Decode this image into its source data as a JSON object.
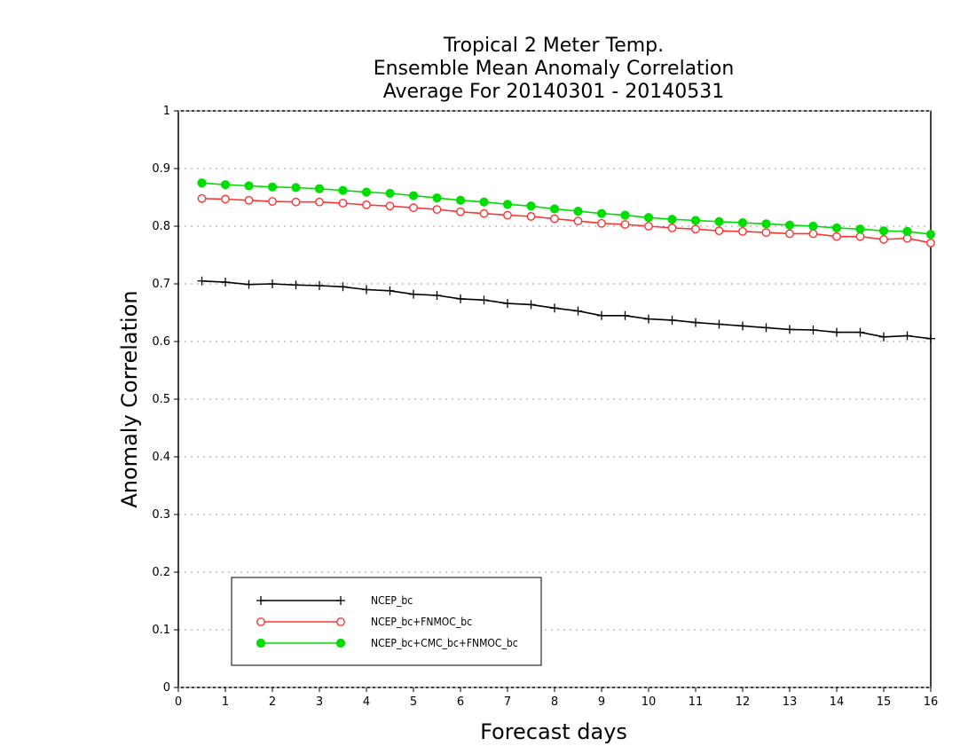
{
  "chart_data": {
    "type": "line",
    "title": [
      "Tropical 2 Meter Temp.",
      "Ensemble Mean Anomaly Correlation",
      "Average For 20140301 - 20140531"
    ],
    "xlabel": "Forecast days",
    "ylabel": "Anomaly Correlation",
    "xlim": [
      0,
      16
    ],
    "ylim": [
      0,
      1
    ],
    "xticks": [
      0,
      1,
      2,
      3,
      4,
      5,
      6,
      7,
      8,
      9,
      10,
      11,
      12,
      13,
      14,
      15,
      16
    ],
    "xtick_labels": [
      "0",
      "1",
      "2",
      "3",
      "4",
      "5",
      "6",
      "7",
      "8",
      "9",
      "10",
      "11",
      "12",
      "13",
      "14",
      "15",
      "16"
    ],
    "yticks": [
      0,
      0.1,
      0.2,
      0.3,
      0.4,
      0.5,
      0.6,
      0.7,
      0.8,
      0.9,
      1
    ],
    "ytick_labels": [
      "0",
      "0.1",
      "0.2",
      "0.3",
      "0.4",
      "0.5",
      "0.6",
      "0.7",
      "0.8",
      "0.9",
      "1"
    ],
    "grid": "horizontal dotted",
    "legend_position": "bottom-left",
    "x": [
      0.5,
      1,
      1.5,
      2,
      2.5,
      3,
      3.5,
      4,
      4.5,
      5,
      5.5,
      6,
      6.5,
      7,
      7.5,
      8,
      8.5,
      9,
      9.5,
      10,
      10.5,
      11,
      11.5,
      12,
      12.5,
      13,
      13.5,
      14,
      14.5,
      15,
      15.5,
      16
    ],
    "series": [
      {
        "name": "NCEP_bc",
        "color": "#000000",
        "marker": "plus",
        "values": [
          0.705,
          0.703,
          0.699,
          0.7,
          0.698,
          0.697,
          0.695,
          0.69,
          0.688,
          0.682,
          0.68,
          0.674,
          0.672,
          0.666,
          0.664,
          0.658,
          0.653,
          0.645,
          0.645,
          0.639,
          0.637,
          0.633,
          0.63,
          0.627,
          0.624,
          0.621,
          0.62,
          0.616,
          0.616,
          0.608,
          0.61,
          0.605
        ]
      },
      {
        "name": "NCEP_bc+FNMOC_bc",
        "color": "#ff3333",
        "marker": "open-circle",
        "values": [
          0.848,
          0.847,
          0.845,
          0.843,
          0.842,
          0.842,
          0.84,
          0.837,
          0.835,
          0.832,
          0.829,
          0.825,
          0.822,
          0.819,
          0.817,
          0.813,
          0.809,
          0.805,
          0.803,
          0.8,
          0.797,
          0.795,
          0.792,
          0.791,
          0.789,
          0.787,
          0.787,
          0.782,
          0.782,
          0.777,
          0.779,
          0.771
        ]
      },
      {
        "name": "NCEP_bc+CMC_bc+FNMOC_bc",
        "color": "#00dd00",
        "marker": "filled-circle",
        "values": [
          0.875,
          0.872,
          0.87,
          0.868,
          0.867,
          0.865,
          0.862,
          0.859,
          0.857,
          0.853,
          0.849,
          0.845,
          0.842,
          0.838,
          0.835,
          0.83,
          0.826,
          0.822,
          0.819,
          0.815,
          0.812,
          0.81,
          0.808,
          0.806,
          0.804,
          0.802,
          0.8,
          0.797,
          0.795,
          0.792,
          0.791,
          0.786
        ]
      }
    ]
  }
}
